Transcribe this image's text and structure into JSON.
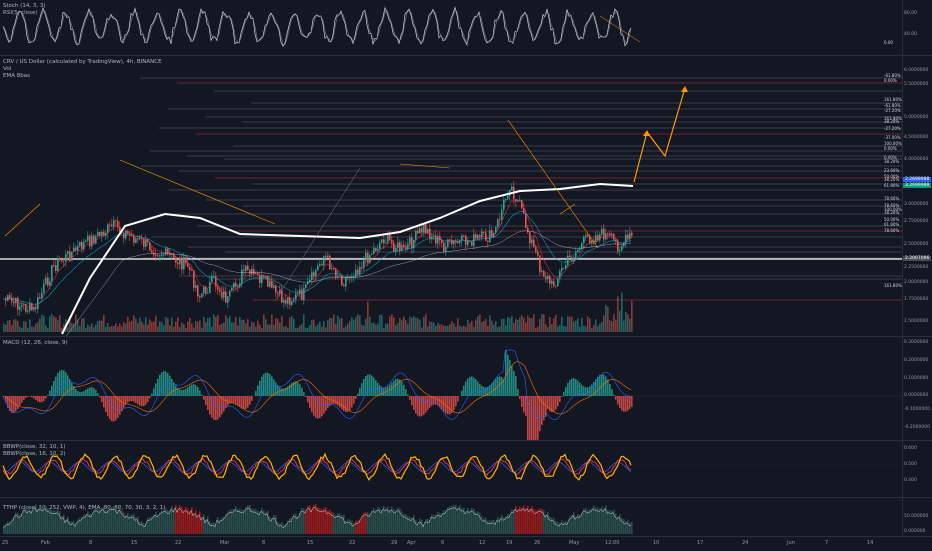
{
  "panes": {
    "stoch": {
      "title": "Stoch (14, 3, 3)",
      "subtitle": "RSI(5, close)",
      "ticks": [
        "80.00",
        "40.00"
      ],
      "value_tag": "0.00"
    },
    "main": {
      "title": "CRV / US Dollar (calculated by TradingView), 4h, BINANCE",
      "sub1": "Vol",
      "sub2": "EMA 8bas",
      "ticks": [
        "6.0000000",
        "5.5000000",
        "5.0000000",
        "4.5000000",
        "4.0000000",
        "3.5000000",
        "3.0000000",
        "2.7500000",
        "2.5000000",
        "2.2500000",
        "2.0000000",
        "1.7500000",
        "1.5000000"
      ],
      "fib_levels": [
        "-61.80%",
        "0.00%",
        "161.80%",
        "-61.80%",
        "-27.20%",
        "161.80%",
        "38.20%",
        "-27.20%",
        "-37.00%",
        "100.00%",
        "0.00%",
        "0.00%",
        "38.20%",
        "23.60%",
        "50.00%",
        "38.20%",
        "61.80%",
        "78.60%",
        "78.60%",
        "100.00%",
        "38.20%",
        "50.00%",
        "61.80%",
        "78.60%",
        "161.80%"
      ],
      "price_badge": "3.2699988",
      "price_badge2": "3.2699988",
      "price_badge3": "2.2007096"
    },
    "macd": {
      "title": "MACD (12, 26, close, 9)",
      "ticks": [
        "0.3000000",
        "0.2000000",
        "0.1000000",
        "0.0000000",
        "-0.1000000",
        "-0.2000000"
      ]
    },
    "bbwp": {
      "title": "BBWP(close, 32, 10, 1)",
      "subtitle": "BBWP(close, 16, 10, 2)",
      "ticks": [
        "0.600",
        "0.500",
        "0.400"
      ]
    },
    "ttm": {
      "title": "TTHP (close, 10, 252, VWP, 4), EMA, 80, 80, 70, 30, 3, 2, 1)",
      "ticks": [
        "50.000000",
        "0.000000"
      ]
    }
  },
  "x_axis": [
    "25",
    "Feb",
    "8",
    "15",
    "22",
    "Mar",
    "8",
    "15",
    "22",
    "29",
    "Apr",
    "6",
    "12",
    "19",
    "26",
    "May",
    "12:00",
    "10",
    "17",
    "24",
    "Jun",
    "7",
    "14"
  ],
  "colors": {
    "bg": "#131722",
    "up": "#26a69a",
    "down": "#ef5350",
    "fib": "#787b86",
    "orange": "#ff9800",
    "white": "#ffffff"
  }
}
